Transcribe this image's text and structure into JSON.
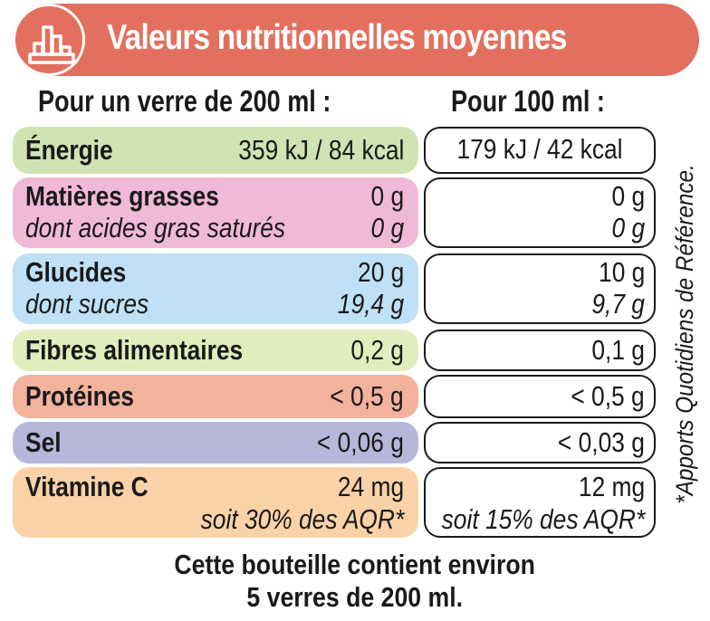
{
  "header": {
    "title": "Valeurs nutritionnelles moyennes",
    "banner_color": "#e3705e",
    "icon": "bar-chart-icon"
  },
  "columns": {
    "per_glass": "Pour un verre de 200 ml :",
    "per_100ml": "Pour 100 ml :"
  },
  "rows": [
    {
      "id": "energie",
      "label": "Énergie",
      "glass": "359 kJ / 84 kcal",
      "per100": "179 kJ / 42 kcal",
      "color": "#cfe3b3"
    },
    {
      "id": "matieres-grasses",
      "label": "Matières grasses",
      "sub_label": "dont acides gras saturés",
      "glass": "0 g",
      "glass_sub": "0 g",
      "per100": "0 g",
      "per100_sub": "0 g",
      "color": "#f1b9d8"
    },
    {
      "id": "glucides",
      "label": "Glucides",
      "sub_label": "dont sucres",
      "glass": "20 g",
      "glass_sub": "19,4 g",
      "per100": "10 g",
      "per100_sub": "9,7 g",
      "color": "#bfe0f5"
    },
    {
      "id": "fibres",
      "label": "Fibres alimentaires",
      "glass": "0,2 g",
      "per100": "0,1 g",
      "color": "#e1edbd"
    },
    {
      "id": "proteines",
      "label": "Protéines",
      "glass": "< 0,5 g",
      "per100": "< 0,5 g",
      "color": "#f3b29c"
    },
    {
      "id": "sel",
      "label": "Sel",
      "glass": "< 0,06 g",
      "per100": "< 0,03 g",
      "color": "#b9b6dc"
    },
    {
      "id": "vitamine-c",
      "label": "Vitamine C",
      "glass": "24 mg",
      "glass_sub": "soit 30% des AQR*",
      "per100": "12 mg",
      "per100_sub": "soit 15% des AQR*",
      "color": "#f9d3a7"
    }
  ],
  "side_note": "*Apports Quotidiens de Référence.",
  "footer": {
    "line1": "Cette bouteille contient environ",
    "line2": "5 verres de 200 ml."
  }
}
